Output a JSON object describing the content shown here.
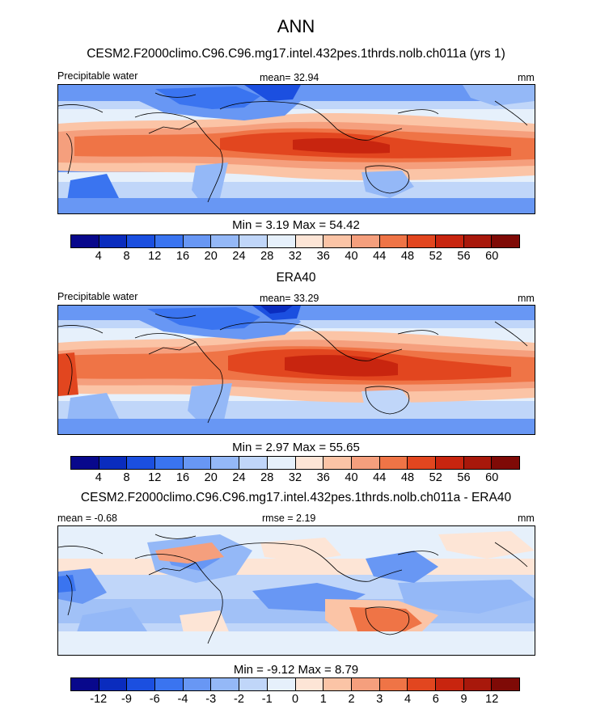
{
  "title": "ANN",
  "colors": {
    "main": [
      "#08088c",
      "#0a2cbe",
      "#1b4fe0",
      "#3a74f0",
      "#6897f4",
      "#94b8f7",
      "#c0d6f9",
      "#e6f0fb",
      "#fde5d6",
      "#fbc4a6",
      "#f59f7d",
      "#ef7446",
      "#e2461f",
      "#c8250f",
      "#a8180b",
      "#7f0a06"
    ],
    "diff": [
      "#08088c",
      "#0a2cbe",
      "#1b4fe0",
      "#3a74f0",
      "#6897f4",
      "#94b8f7",
      "#c0d6f9",
      "#e6f0fb",
      "#fde5d6",
      "#fbc4a6",
      "#f59f7d",
      "#ef7446",
      "#e2461f",
      "#c8250f",
      "#a8180b",
      "#7f0a06"
    ]
  },
  "panels": [
    {
      "title": "CESM2.F2000climo.C96.C96.mg17.intel.432pes.1thrds.nolb.ch011a (yrs 1)",
      "left_label": "Precipitable water",
      "stat_label": "mean=",
      "stat_value": "32.94",
      "unit": "mm",
      "min_label": "Min =",
      "min_value": "3.19",
      "max_label": "Max =",
      "max_value": "54.42",
      "ticks": [
        "4",
        "8",
        "12",
        "16",
        "20",
        "24",
        "28",
        "32",
        "36",
        "40",
        "44",
        "48",
        "52",
        "56",
        "60"
      ]
    },
    {
      "title": "ERA40",
      "left_label": "Precipitable water",
      "stat_label": "mean=",
      "stat_value": "33.29",
      "unit": "mm",
      "min_label": "Min =",
      "min_value": "2.97",
      "max_label": "Max =",
      "max_value": "55.65",
      "ticks": [
        "4",
        "8",
        "12",
        "16",
        "20",
        "24",
        "28",
        "32",
        "36",
        "40",
        "44",
        "48",
        "52",
        "56",
        "60"
      ]
    },
    {
      "title": "CESM2.F2000climo.C96.C96.mg17.intel.432pes.1thrds.nolb.ch011a - ERA40",
      "left_label": "mean =  -0.68",
      "stat_label": "rmse =",
      "stat_value": "2.19",
      "unit": "mm",
      "min_label": "Min =",
      "min_value": "-9.12",
      "max_label": "Max =",
      "max_value": "8.79",
      "ticks": [
        "-12",
        "-9",
        "-6",
        "-4",
        "-3",
        "-2",
        "-1",
        "0",
        "1",
        "2",
        "3",
        "4",
        "6",
        "9",
        "12"
      ]
    }
  ]
}
